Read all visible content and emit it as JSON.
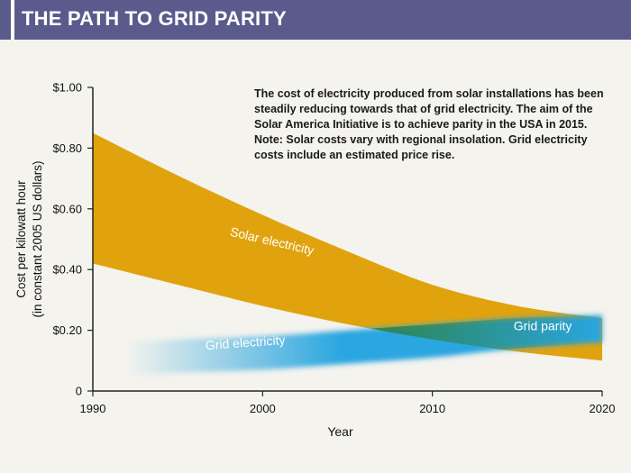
{
  "chart_data": {
    "type": "area",
    "title": "THE PATH TO GRID PARITY",
    "xlabel": "Year",
    "ylabel": [
      "Cost per kilowatt hour",
      "(in constant 2005 US dollars)"
    ],
    "xlim": [
      1990,
      2020
    ],
    "ylim": [
      0,
      1.0
    ],
    "x_ticks": [
      {
        "value": 1990,
        "label": "1990"
      },
      {
        "value": 2000,
        "label": "2000"
      },
      {
        "value": 2010,
        "label": "2010"
      },
      {
        "value": 2020,
        "label": "2020"
      }
    ],
    "y_ticks": [
      {
        "value": 0,
        "label": "0"
      },
      {
        "value": 0.2,
        "label": "$0.20"
      },
      {
        "value": 0.4,
        "label": "$0.40"
      },
      {
        "value": 0.6,
        "label": "$0.60"
      },
      {
        "value": 0.8,
        "label": "$0.80"
      },
      {
        "value": 1.0,
        "label": "$1.00"
      }
    ],
    "series": [
      {
        "name": "Solar electricity",
        "color": "#e0a30e",
        "x": [
          1990,
          1995,
          2000,
          2005,
          2010,
          2015,
          2020
        ],
        "upper": [
          0.85,
          0.71,
          0.58,
          0.46,
          0.35,
          0.28,
          0.24
        ],
        "lower": [
          0.42,
          0.35,
          0.28,
          0.22,
          0.17,
          0.13,
          0.1
        ]
      },
      {
        "name": "Grid electricity",
        "color": "#2aa6e0",
        "x": [
          1992,
          1995,
          2000,
          2005,
          2010,
          2015,
          2020
        ],
        "upper": [
          0.16,
          0.17,
          0.18,
          0.2,
          0.22,
          0.24,
          0.25
        ],
        "lower": [
          0.05,
          0.06,
          0.07,
          0.09,
          0.11,
          0.14,
          0.16
        ]
      }
    ],
    "annotations": [
      {
        "text": "Solar electricity",
        "x": 2000.5,
        "y": 0.48,
        "rotate": 13,
        "color": "#ffffff"
      },
      {
        "text": "Grid electricity",
        "x": 1999,
        "y": 0.145,
        "rotate": -4,
        "color": "#ffffff"
      },
      {
        "text": "Grid parity",
        "x": 2016.5,
        "y": 0.2,
        "rotate": 0,
        "color": "#ffffff"
      }
    ],
    "note": "The cost of electricity produced from solar installations has been steadily reducing towards that of grid electricity. The aim of the Solar America Initiative is to achieve parity in the USA in 2015. Note: Solar costs vary with regional insolation. Grid electricity costs include an estimated price rise.",
    "colors": {
      "parity": "#2f7a2e",
      "axis": "#222222",
      "background": "#f4f3ee"
    }
  }
}
